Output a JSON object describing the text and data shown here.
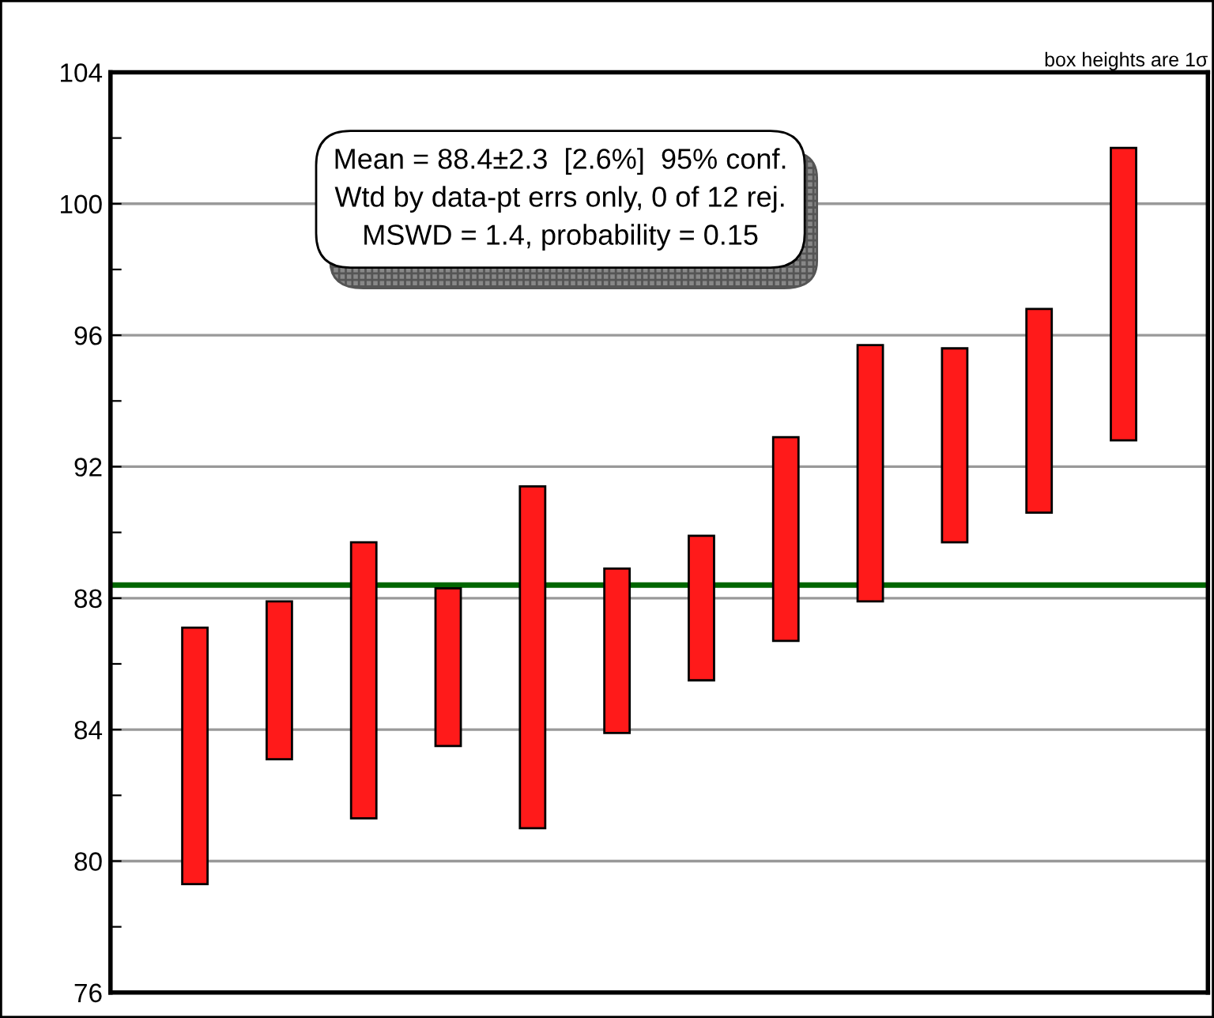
{
  "chart_data": {
    "type": "bar",
    "categories": [
      null,
      null,
      null,
      null,
      null,
      null,
      null,
      null,
      null,
      null,
      null,
      null
    ],
    "base": [
      79.3,
      83.1,
      81.3,
      83.5,
      81.0,
      83.9,
      85.5,
      86.7,
      87.9,
      89.7,
      90.6,
      92.8
    ],
    "values": [
      7.8,
      4.8,
      8.4,
      4.8,
      10.4,
      5.0,
      4.4,
      6.2,
      7.8,
      5.9,
      6.2,
      8.9
    ],
    "color": "#ff1a1a",
    "ylim": [
      76,
      104
    ],
    "yticks": [
      76,
      {
        "value": 78,
        "label": null
      },
      80,
      {
        "value": 82,
        "label": null
      },
      84,
      {
        "value": 86,
        "label": null
      },
      88,
      {
        "value": 90,
        "label": null
      },
      92,
      {
        "value": 94,
        "label": null
      },
      96,
      {
        "value": 98,
        "label": null
      },
      100,
      {
        "value": 102,
        "label": null
      },
      104
    ],
    "grid": "y",
    "tick_labels": "y",
    "ref_lines": [
      {
        "axis": "y",
        "value": 88.4,
        "color": "#006600"
      }
    ],
    "annotations": [
      "Mean = 88.4±2.3  [2.6%]  95% conf.\nWtd by data-pt errs only, 0 of 12 rej.\nMSWD = 1.4, probability = 0.15",
      "box heights are 1σ"
    ]
  }
}
